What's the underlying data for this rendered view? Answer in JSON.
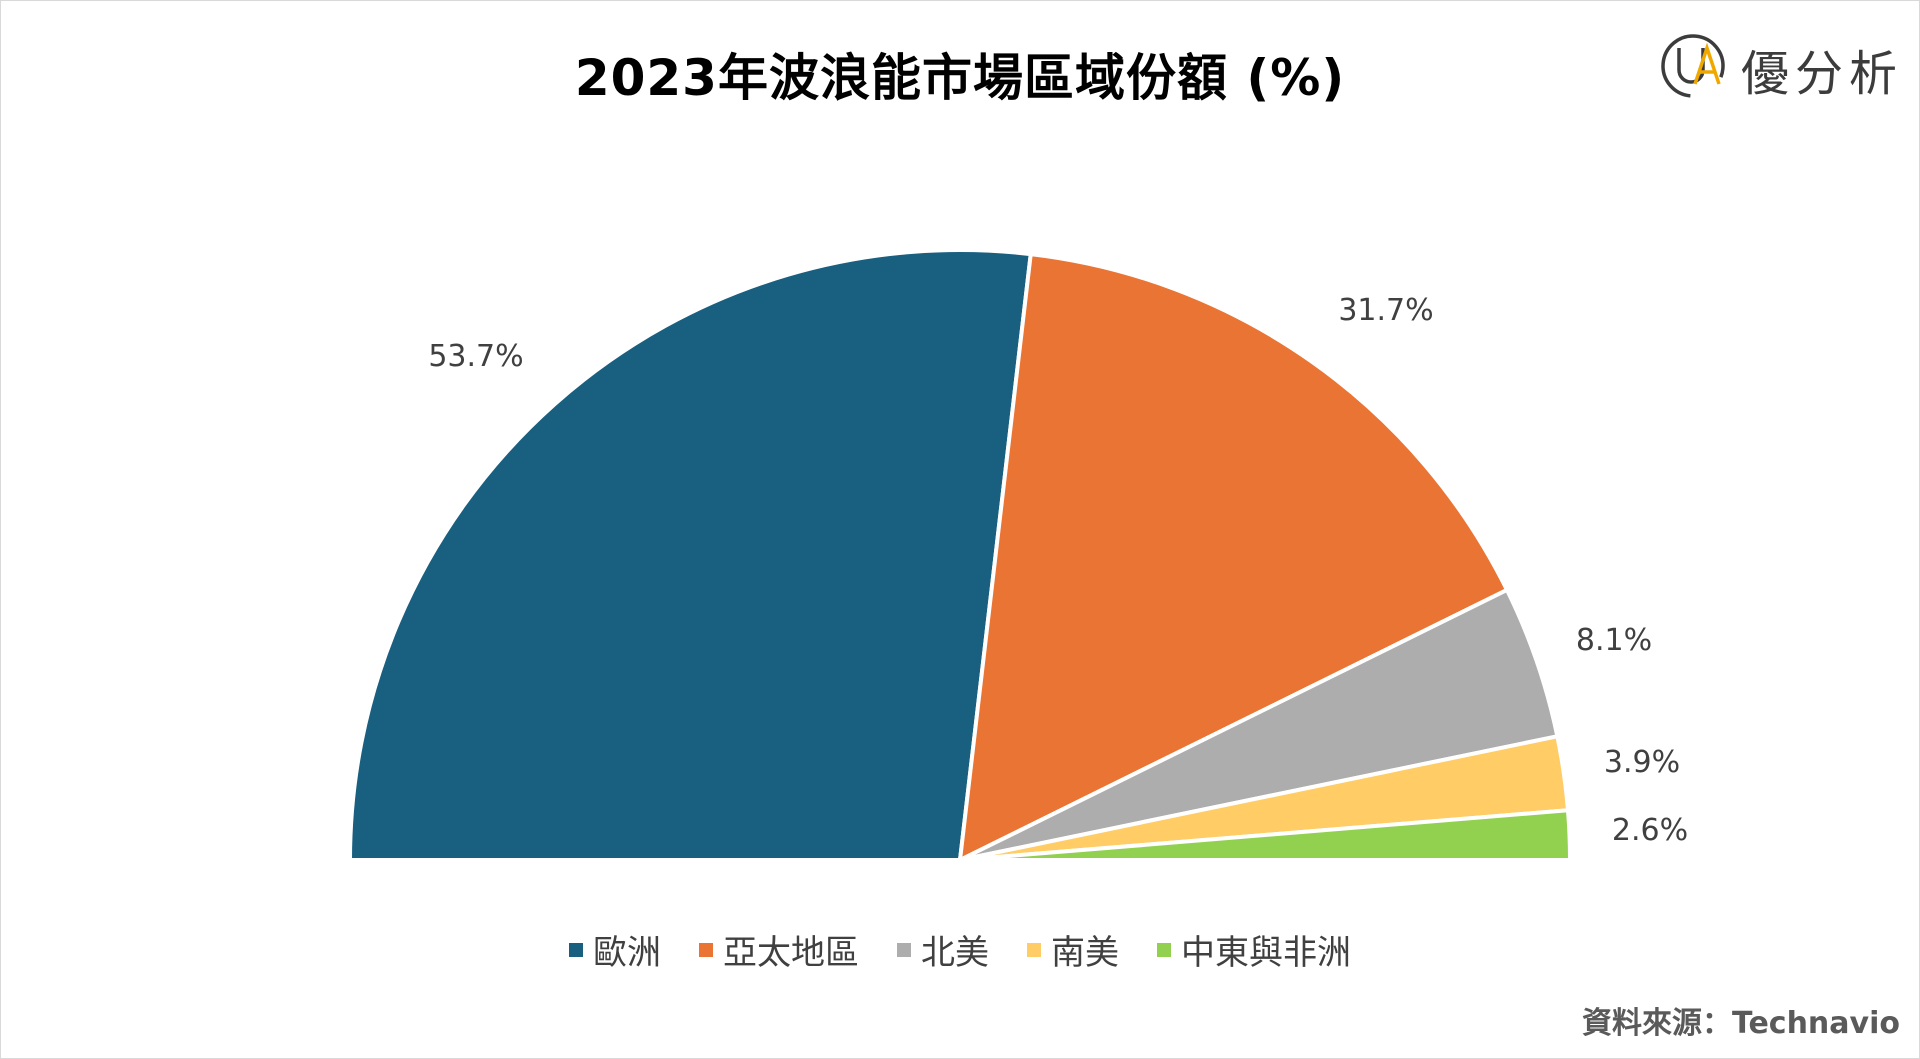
{
  "title": "2023年波浪能市場區域份額 (%)",
  "logo": {
    "text": "優分析",
    "mark_letters": "UA"
  },
  "source": "資料來源：Technavio",
  "chart_data": {
    "type": "pie",
    "layout_variant": "half-donut-semicircle",
    "title": "2023年波浪能市場區域份額 (%)",
    "categories": [
      "歐洲",
      "亞太地區",
      "北美",
      "南美",
      "中東與非洲"
    ],
    "values": [
      53.7,
      31.7,
      8.1,
      3.9,
      2.6
    ],
    "labels": [
      "53.7%",
      "31.7%",
      "8.1%",
      "3.9%",
      "2.6%"
    ],
    "colors": [
      "#185f80",
      "#e97434",
      "#adadad",
      "#ffcc66",
      "#92d050"
    ],
    "legend_position": "bottom"
  }
}
